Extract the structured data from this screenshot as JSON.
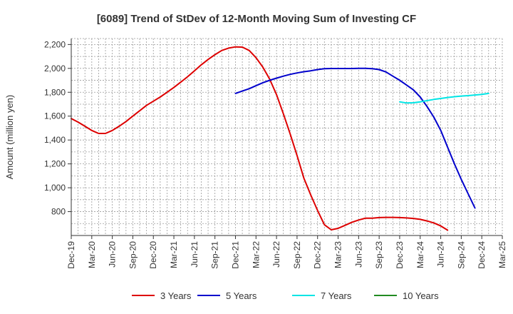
{
  "chart_data": {
    "type": "line",
    "title": "[6089]  Trend of StDev of 12-Month Moving Sum of Investing CF",
    "xlabel": "",
    "ylabel": "Amount (million yen)",
    "ylim": [
      600,
      2250
    ],
    "yticks": [
      800,
      1000,
      1200,
      1400,
      1600,
      1800,
      2000,
      2200
    ],
    "ytick_labels": [
      "800",
      "1,000",
      "1,200",
      "1,400",
      "1,600",
      "1,800",
      "2,000",
      "2,200"
    ],
    "x_tick_labels": [
      "Dec-19",
      "Mar-20",
      "Jun-20",
      "Sep-20",
      "Dec-20",
      "Mar-21",
      "Jun-21",
      "Sep-21",
      "Dec-21",
      "Mar-22",
      "Jun-22",
      "Sep-22",
      "Dec-22",
      "Mar-23",
      "Jun-23",
      "Sep-23",
      "Dec-23",
      "Mar-24",
      "Jun-24",
      "Sep-24",
      "Dec-24",
      "Mar-25"
    ],
    "grid": true,
    "legend_position": "bottom",
    "series": [
      {
        "name": "3 Years",
        "color": "#dd0000",
        "start_index": 0,
        "values": [
          1580,
          1550,
          1515,
          1480,
          1455,
          1455,
          1480,
          1515,
          1555,
          1600,
          1645,
          1690,
          1725,
          1760,
          1800,
          1840,
          1885,
          1930,
          1980,
          2030,
          2075,
          2115,
          2150,
          2170,
          2180,
          2178,
          2150,
          2090,
          2010,
          1910,
          1780,
          1620,
          1450,
          1270,
          1080,
          940,
          810,
          690,
          648,
          660,
          685,
          710,
          730,
          745,
          745,
          750,
          752,
          752,
          750,
          747,
          743,
          735,
          722,
          705,
          680,
          645
        ]
      },
      {
        "name": "5 Years",
        "color": "#0000cc",
        "start_index": 24,
        "values": [
          1790,
          1810,
          1830,
          1855,
          1880,
          1900,
          1918,
          1935,
          1950,
          1962,
          1972,
          1980,
          1990,
          1998,
          1999,
          1999,
          1999,
          1999,
          2000,
          2000,
          1998,
          1990,
          1970,
          1935,
          1900,
          1860,
          1820,
          1760,
          1680,
          1590,
          1480,
          1340,
          1200,
          1070,
          950,
          830
        ]
      },
      {
        "name": "7 Years",
        "color": "#00e5e5",
        "start_index": 48,
        "values": [
          1720,
          1710,
          1712,
          1720,
          1730,
          1740,
          1748,
          1756,
          1763,
          1768,
          1772,
          1777,
          1782,
          1790
        ]
      },
      {
        "name": "10 Years",
        "color": "#228b22",
        "start_index": 0,
        "values": []
      }
    ]
  }
}
